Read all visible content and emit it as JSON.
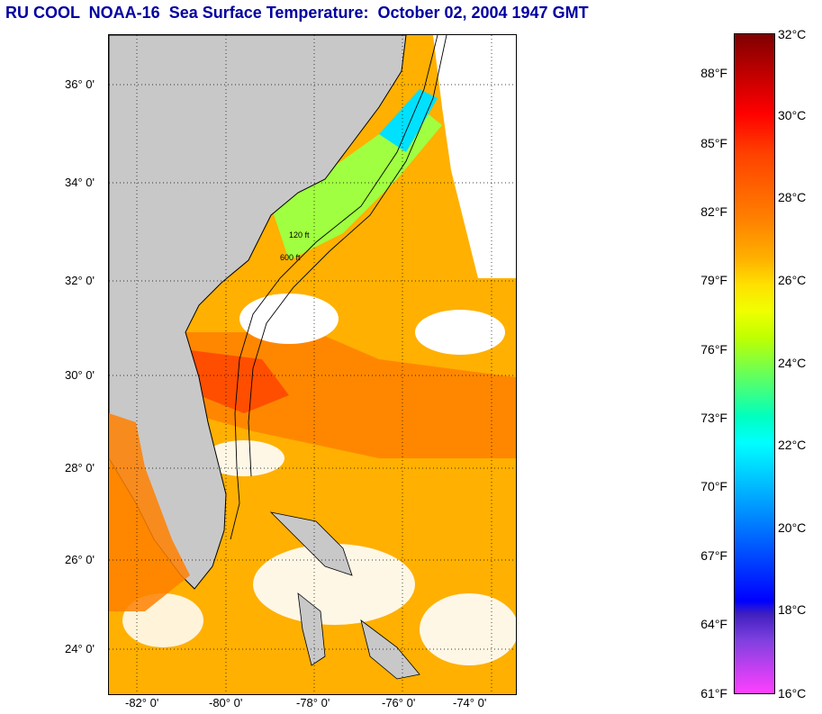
{
  "title": "RU COOL  NOAA-16  Sea Surface Temperature:  October 02, 2004 1947 GMT",
  "map": {
    "lat_ticks": [
      "36° 0'",
      "34° 0'",
      "32° 0'",
      "30° 0'",
      "28° 0'",
      "26° 0'",
      "24° 0'"
    ],
    "lon_ticks": [
      "-82° 0'",
      "-80° 0'",
      "-78° 0'",
      "-76° 0'",
      "-74° 0'"
    ],
    "contour_labels": [
      "120 ft",
      "600 ft"
    ],
    "land_color": "#c8c8c8",
    "cloud_color": "#ffffff"
  },
  "colorbar": {
    "fahrenheit_labels": [
      "88°F",
      "85°F",
      "82°F",
      "79°F",
      "76°F",
      "73°F",
      "70°F",
      "67°F",
      "64°F",
      "61°F"
    ],
    "celsius_labels": [
      "32°C",
      "30°C",
      "28°C",
      "26°C",
      "24°C",
      "22°C",
      "20°C",
      "18°C",
      "16°C"
    ]
  }
}
